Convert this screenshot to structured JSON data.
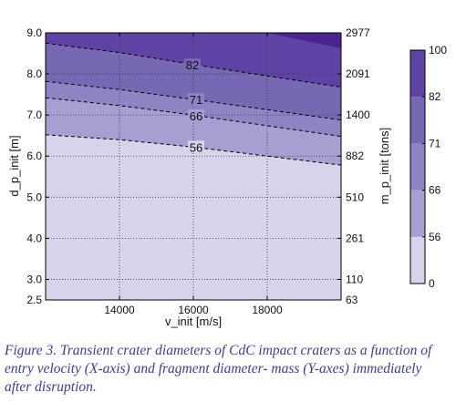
{
  "chart_data": {
    "type": "contour",
    "title": "",
    "xlabel": "v_init [m/s]",
    "ylabel_left": "d_p_init [m]",
    "ylabel_right": "m_p_init [tons]",
    "xlim": [
      12000,
      20000
    ],
    "ylim": [
      2.5,
      9.0
    ],
    "x_ticks": [
      14000,
      16000,
      18000
    ],
    "y_ticks_left": [
      2.5,
      3.0,
      4.0,
      5.0,
      6.0,
      7.0,
      8.0,
      9.0
    ],
    "y_ticks_left_labels": [
      "2.5",
      "3.0",
      "4.0",
      "5.0",
      "6.0",
      "7.0",
      "8.0",
      "9.0"
    ],
    "y_ticks_right": [
      {
        "d": 2.5,
        "label": "63"
      },
      {
        "d": 3.0,
        "label": "110"
      },
      {
        "d": 4.0,
        "label": "261"
      },
      {
        "d": 5.0,
        "label": "510"
      },
      {
        "d": 6.0,
        "label": "882"
      },
      {
        "d": 7.0,
        "label": "1400"
      },
      {
        "d": 8.0,
        "label": "2091"
      },
      {
        "d": 9.0,
        "label": "2977"
      }
    ],
    "grid": true,
    "contour_lines": [
      {
        "level": "56",
        "points": [
          [
            12000,
            6.52
          ],
          [
            14000,
            6.4
          ],
          [
            16000,
            6.22
          ],
          [
            18000,
            6.0
          ],
          [
            20000,
            5.78
          ]
        ],
        "label_at": [
          16000,
          6.22
        ]
      },
      {
        "level": "66",
        "points": [
          [
            12000,
            7.42
          ],
          [
            14000,
            7.23
          ],
          [
            16000,
            7.0
          ],
          [
            18000,
            6.74
          ],
          [
            20000,
            6.48
          ]
        ],
        "label_at": [
          16000,
          6.98
        ]
      },
      {
        "level": "71",
        "points": [
          [
            12000,
            7.82
          ],
          [
            14000,
            7.62
          ],
          [
            16000,
            7.38
          ],
          [
            18000,
            7.13
          ],
          [
            20000,
            6.88
          ]
        ],
        "label_at": [
          16000,
          7.38
        ]
      },
      {
        "level": "82",
        "points": [
          [
            12000,
            8.75
          ],
          [
            14000,
            8.52
          ],
          [
            16000,
            8.23
          ],
          [
            18000,
            7.95
          ],
          [
            20000,
            7.68
          ]
        ],
        "label_at": [
          15900,
          8.22
        ]
      },
      {
        "level": "100",
        "points": [
          [
            12000,
            9.0
          ],
          [
            18000,
            9.0
          ],
          [
            20000,
            8.62
          ]
        ],
        "label_at": null
      }
    ],
    "colorbar": {
      "levels": [
        "0",
        "56",
        "66",
        "71",
        "82",
        "100"
      ],
      "colors": [
        "#d6d3ea",
        "#a5a0d1",
        "#8d85c3",
        "#7768b4",
        "#5f43a4",
        "#4a2592"
      ]
    }
  },
  "caption": "Figure 3. Transient crater diameters of CdC impact craters as a function of entry velocity (X-axis) and fragment diameter- mass (Y-axes) immediately after disruption."
}
